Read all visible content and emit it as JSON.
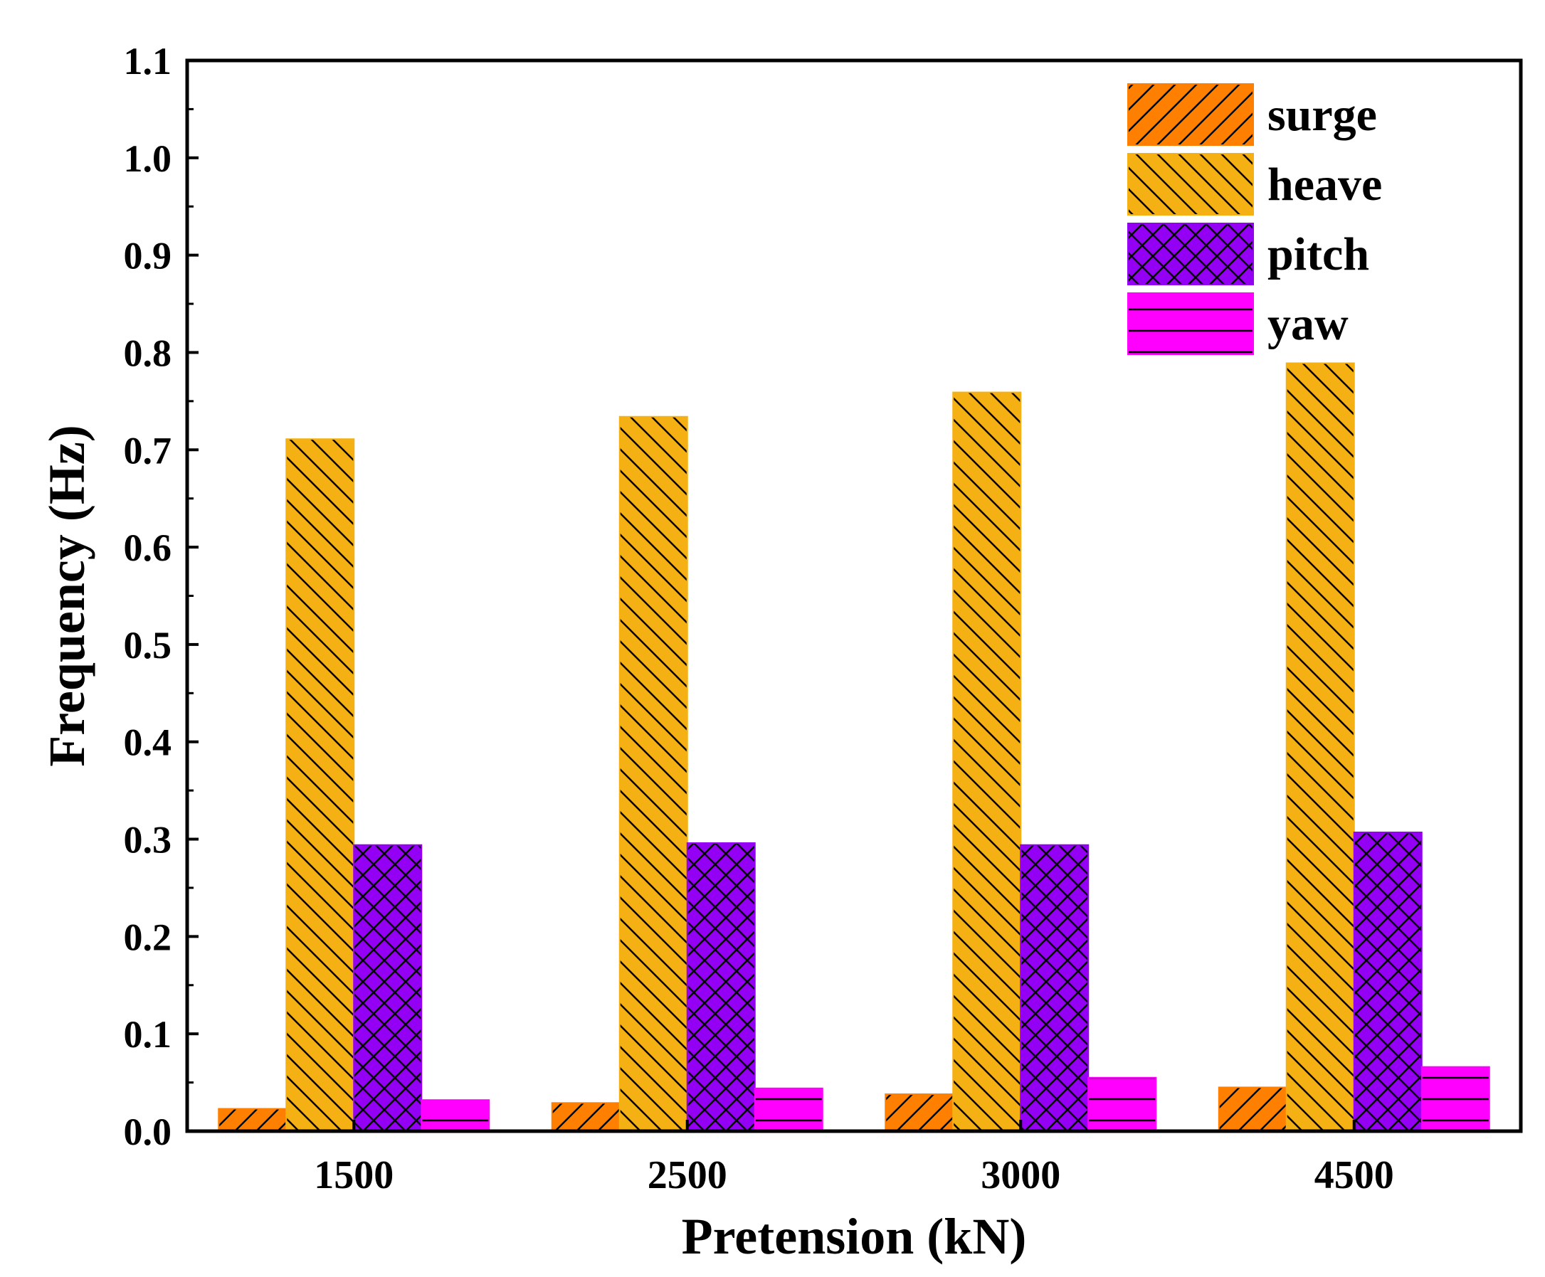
{
  "chart_data": {
    "type": "bar",
    "title": "",
    "xlabel": "Pretension (kN)",
    "ylabel": "Frequency (Hz)",
    "ylim": [
      0,
      1.1
    ],
    "yticks": [
      "0.0",
      "0.1",
      "0.2",
      "0.3",
      "0.4",
      "0.5",
      "0.6",
      "0.7",
      "0.8",
      "0.9",
      "1.0",
      "1.1"
    ],
    "categories": [
      "1500",
      "2500",
      "3000",
      "4500"
    ],
    "legend_position": "top-right",
    "series": [
      {
        "name": "surge",
        "color": "#FF8000",
        "pattern": "forward-diagonal",
        "values": [
          0.023,
          0.029,
          0.038,
          0.045
        ]
      },
      {
        "name": "heave",
        "color": "#F5B014",
        "pattern": "backward-diagonal",
        "values": [
          0.711,
          0.734,
          0.759,
          0.789
        ]
      },
      {
        "name": "pitch",
        "color": "#9400F4",
        "pattern": "crosshatch",
        "values": [
          0.294,
          0.296,
          0.294,
          0.307
        ]
      },
      {
        "name": "yaw",
        "color": "#FF00FF",
        "pattern": "horizontal",
        "values": [
          0.032,
          0.044,
          0.055,
          0.066
        ]
      }
    ]
  }
}
